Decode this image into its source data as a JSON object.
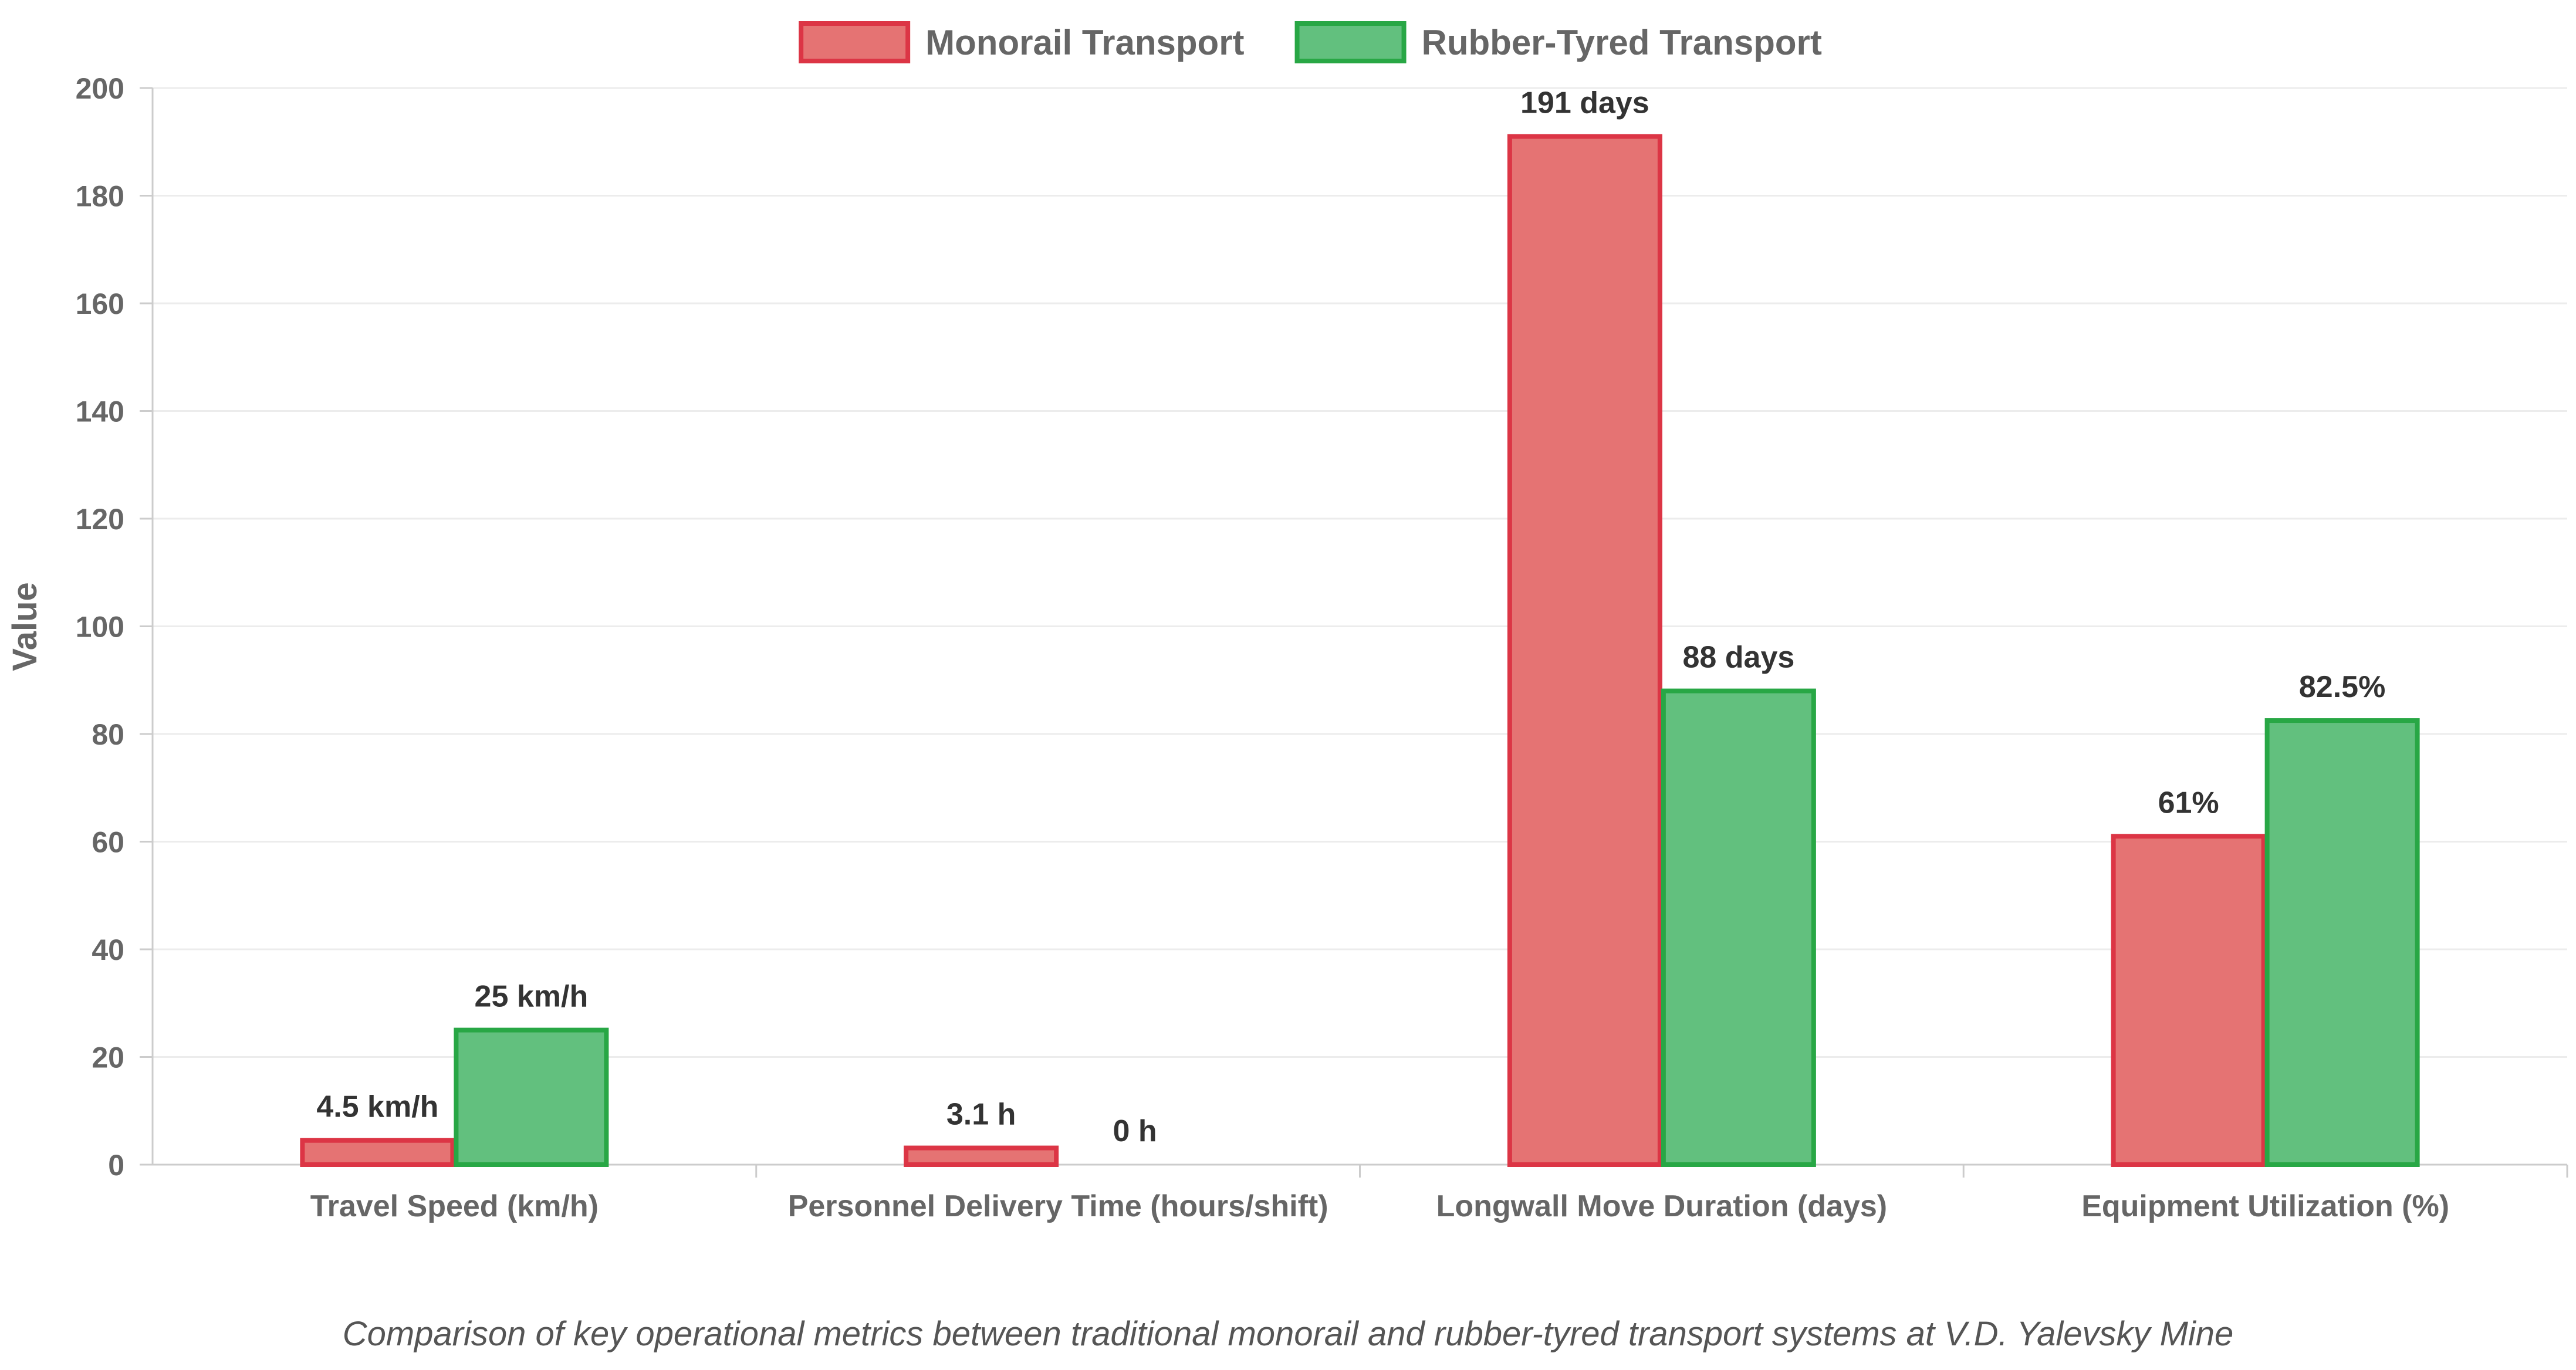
{
  "caption": "Comparison of key operational metrics between traditional monorail and rubber-tyred transport systems at V.D. Yalevsky Mine",
  "chart_data": {
    "type": "bar",
    "title": "",
    "xlabel": "",
    "ylabel": "Value",
    "ylim": [
      0,
      200
    ],
    "yticks": [
      0,
      20,
      40,
      60,
      80,
      100,
      120,
      140,
      160,
      180,
      200
    ],
    "grid": true,
    "legend_position": "top-center",
    "categories": [
      "Travel Speed (km/h)",
      "Personnel Delivery Time (hours/shift)",
      "Longwall Move Duration (days)",
      "Equipment Utilization (%)"
    ],
    "series": [
      {
        "name": "Monorail Transport",
        "color": "#e57373",
        "border_color": "#dc3545",
        "values": [
          4.5,
          3.1,
          191,
          61
        ],
        "labels": [
          "4.5 km/h",
          "3.1 h",
          "191 days",
          "61%"
        ]
      },
      {
        "name": "Rubber-Tyred Transport",
        "color": "#62c07e",
        "border_color": "#28a745",
        "values": [
          25,
          0,
          88,
          82.5
        ],
        "labels": [
          "25 km/h",
          "0 h",
          "88 days",
          "82.5%"
        ]
      }
    ]
  }
}
